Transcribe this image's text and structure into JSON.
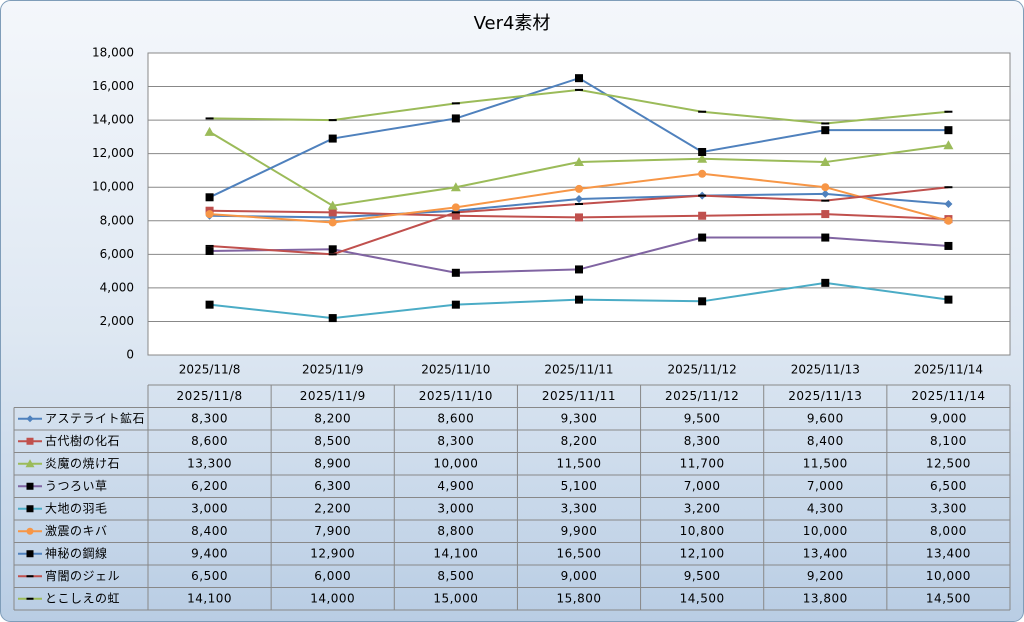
{
  "chart_data": {
    "type": "line",
    "title": "Ver4素材",
    "categories": [
      "2025/11/8",
      "2025/11/9",
      "2025/11/10",
      "2025/11/11",
      "2025/11/12",
      "2025/11/13",
      "2025/11/14"
    ],
    "ylim": [
      0,
      18000
    ],
    "yticks": [
      0,
      {
        "value": 2000,
        "label": "2,000"
      },
      {
        "value": 4000,
        "label": "4,000"
      },
      {
        "value": 6000,
        "label": "6,000"
      },
      {
        "value": 8000,
        "label": "8,000"
      },
      {
        "value": 10000,
        "label": "10,000"
      },
      {
        "value": 12000,
        "label": "12,000"
      },
      {
        "value": 14000,
        "label": "14,000"
      },
      {
        "value": 16000,
        "label": "16,000"
      },
      {
        "value": 18000,
        "label": "18,000"
      }
    ],
    "grid": true,
    "series": [
      {
        "name": "アステライト鉱石",
        "color": "#4f81bd",
        "marker": "diamond",
        "marker_color": "#4f81bd",
        "values": [
          8300,
          8200,
          8600,
          9300,
          9500,
          9600,
          9000
        ],
        "value_labels": [
          "8,300",
          "8,200",
          "8,600",
          "9,300",
          "9,500",
          "9,600",
          "9,000"
        ]
      },
      {
        "name": "古代樹の化石",
        "color": "#c0504d",
        "marker": "square",
        "marker_color": "#c0504d",
        "values": [
          8600,
          8500,
          8300,
          8200,
          8300,
          8400,
          8100
        ],
        "value_labels": [
          "8,600",
          "8,500",
          "8,300",
          "8,200",
          "8,300",
          "8,400",
          "8,100"
        ]
      },
      {
        "name": "炎魔の焼け石",
        "color": "#9bbb59",
        "marker": "triangle",
        "marker_color": "#9bbb59",
        "values": [
          13300,
          8900,
          10000,
          11500,
          11700,
          11500,
          12500
        ],
        "value_labels": [
          "13,300",
          "8,900",
          "10,000",
          "11,500",
          "11,700",
          "11,500",
          "12,500"
        ]
      },
      {
        "name": "うつろい草",
        "color": "#8064a2",
        "marker": "square",
        "marker_color": "#000000",
        "values": [
          6200,
          6300,
          4900,
          5100,
          7000,
          7000,
          6500
        ],
        "value_labels": [
          "6,200",
          "6,300",
          "4,900",
          "5,100",
          "7,000",
          "7,000",
          "6,500"
        ]
      },
      {
        "name": "大地の羽毛",
        "color": "#4bacc6",
        "marker": "square",
        "marker_color": "#000000",
        "values": [
          3000,
          2200,
          3000,
          3300,
          3200,
          4300,
          3300
        ],
        "value_labels": [
          "3,000",
          "2,200",
          "3,000",
          "3,300",
          "3,200",
          "4,300",
          "3,300"
        ]
      },
      {
        "name": "激震のキバ",
        "color": "#f79646",
        "marker": "circle",
        "marker_color": "#f79646",
        "values": [
          8400,
          7900,
          8800,
          9900,
          10800,
          10000,
          8000
        ],
        "value_labels": [
          "8,400",
          "7,900",
          "8,800",
          "9,900",
          "10,800",
          "10,000",
          "8,000"
        ]
      },
      {
        "name": "神秘の鋼線",
        "color": "#4f81bd",
        "marker": "square",
        "marker_color": "#000000",
        "values": [
          9400,
          12900,
          14100,
          16500,
          12100,
          13400,
          13400
        ],
        "value_labels": [
          "9,400",
          "12,900",
          "14,100",
          "16,500",
          "12,100",
          "13,400",
          "13,400"
        ]
      },
      {
        "name": "宵闇のジェル",
        "color": "#c0504d",
        "marker": "dash",
        "marker_color": "#000000",
        "values": [
          6500,
          6000,
          8500,
          9000,
          9500,
          9200,
          10000
        ],
        "value_labels": [
          "6,500",
          "6,000",
          "8,500",
          "9,000",
          "9,500",
          "9,200",
          "10,000"
        ]
      },
      {
        "name": "とこしえの虹",
        "color": "#9bbb59",
        "marker": "dash",
        "marker_color": "#000000",
        "values": [
          14100,
          14000,
          15000,
          15800,
          14500,
          13800,
          14500
        ],
        "value_labels": [
          "14,100",
          "14,000",
          "15,000",
          "15,800",
          "14,500",
          "13,800",
          "14,500"
        ]
      }
    ]
  }
}
